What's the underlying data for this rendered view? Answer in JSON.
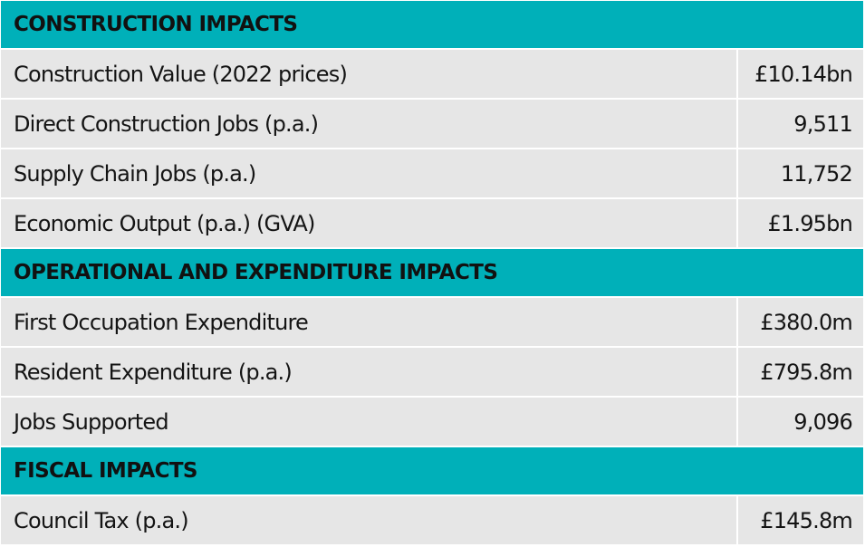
{
  "table": {
    "sections": [
      {
        "header": "CONSTRUCTION IMPACTS",
        "rows": [
          {
            "label": "Construction Value (2022 prices)",
            "value": "£10.14bn"
          },
          {
            "label": "Direct Construction Jobs (p.a.)",
            "value": "9,511"
          },
          {
            "label": "Supply Chain Jobs (p.a.)",
            "value": "11,752"
          },
          {
            "label": "Economic Output (p.a.) (GVA)",
            "value": "£1.95bn"
          }
        ]
      },
      {
        "header": "OPERATIONAL AND EXPENDITURE IMPACTS",
        "rows": [
          {
            "label": "First Occupation Expenditure",
            "value": "£380.0m"
          },
          {
            "label": "Resident Expenditure (p.a.)",
            "value": "£795.8m"
          },
          {
            "label": "Jobs Supported",
            "value": "9,096"
          }
        ]
      },
      {
        "header": "FISCAL IMPACTS",
        "rows": [
          {
            "label": "Council Tax (p.a.)",
            "value": "£145.8m"
          }
        ]
      }
    ]
  },
  "colors": {
    "header_bg": "#00b0b9",
    "row_bg": "#e6e6e6",
    "divider": "#ffffff"
  }
}
